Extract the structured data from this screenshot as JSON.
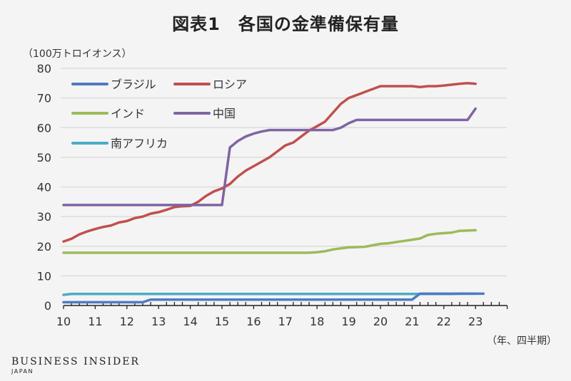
{
  "title": "図表1　各国の金準備保有量",
  "footer": {
    "brand": "BUSINESS INSIDER",
    "sub": "JAPAN"
  },
  "chart_data": {
    "type": "line",
    "title": "図表1　各国の金準備保有量",
    "ylabel": "（100万トロイオンス）",
    "xlabel": "（年、四半期）",
    "ylim": [
      0,
      80
    ],
    "yticks": [
      0,
      10,
      20,
      30,
      40,
      50,
      60,
      70,
      80
    ],
    "xlim": [
      10,
      24
    ],
    "xticks": [
      "10",
      "11",
      "12",
      "13",
      "14",
      "15",
      "16",
      "17",
      "18",
      "19",
      "20",
      "21",
      "22",
      "23"
    ],
    "x_start": 10,
    "x_step": 0.25,
    "grid": true,
    "legend_position": "top-left",
    "series": [
      {
        "name": "ブラジル",
        "color": "#4f7bc1",
        "values": [
          1.1,
          1.1,
          1.1,
          1.1,
          1.1,
          1.1,
          1.1,
          1.1,
          1.1,
          1.1,
          1.1,
          2,
          2,
          2,
          2,
          2,
          2,
          2,
          2,
          2,
          2,
          2,
          2,
          2,
          2,
          2,
          2,
          2,
          2,
          2,
          2,
          2,
          2,
          2,
          2,
          2,
          2,
          2,
          2,
          2,
          2,
          2,
          2,
          2,
          2,
          4,
          4,
          4,
          4,
          4,
          4,
          4,
          4,
          4
        ]
      },
      {
        "name": "ロシア",
        "color": "#c0504d",
        "values": [
          21.6,
          22.5,
          24,
          25,
          25.8,
          26.5,
          27,
          28,
          28.5,
          29.5,
          30,
          31,
          31.5,
          32.3,
          33.2,
          33.5,
          33.6,
          35,
          37,
          38.5,
          39.5,
          41,
          43.5,
          45.5,
          47,
          48.5,
          50,
          52,
          54,
          55,
          57,
          59,
          60.5,
          62,
          65,
          68,
          70,
          71,
          72,
          73,
          74,
          74,
          74,
          74,
          74,
          73.7,
          74,
          74,
          74.2,
          74.5,
          74.8,
          75,
          74.8
        ]
      },
      {
        "name": "インド",
        "color": "#9bbb59",
        "values": [
          17.8,
          17.8,
          17.8,
          17.8,
          17.8,
          17.8,
          17.8,
          17.8,
          17.8,
          17.8,
          17.8,
          17.8,
          17.8,
          17.8,
          17.8,
          17.8,
          17.8,
          17.8,
          17.8,
          17.8,
          17.8,
          17.8,
          17.8,
          17.8,
          17.8,
          17.8,
          17.8,
          17.8,
          17.8,
          17.8,
          17.8,
          17.8,
          18.0,
          18.3,
          18.9,
          19.3,
          19.6,
          19.7,
          19.8,
          20.3,
          20.8,
          21,
          21.4,
          21.8,
          22.2,
          22.6,
          23.8,
          24.2,
          24.4,
          24.6,
          25.2,
          25.3,
          25.4
        ]
      },
      {
        "name": "中国",
        "color": "#8064a2",
        "values": [
          33.9,
          33.9,
          33.9,
          33.9,
          33.9,
          33.9,
          33.9,
          33.9,
          33.9,
          33.9,
          33.9,
          33.9,
          33.9,
          33.9,
          33.9,
          33.9,
          33.9,
          33.9,
          33.9,
          33.9,
          33.9,
          53.3,
          55.5,
          57,
          58,
          58.7,
          59.2,
          59.2,
          59.2,
          59.2,
          59.2,
          59.2,
          59.2,
          59.2,
          59.2,
          60,
          61.5,
          62.6,
          62.6,
          62.6,
          62.6,
          62.6,
          62.6,
          62.6,
          62.6,
          62.6,
          62.6,
          62.6,
          62.6,
          62.6,
          62.6,
          62.6,
          66.4
        ]
      },
      {
        "name": "南アフリカ",
        "color": "#4bacc6",
        "values": [
          3.6,
          3.9,
          3.9,
          3.9,
          3.9,
          3.9,
          3.9,
          3.9,
          3.9,
          3.9,
          3.9,
          3.9,
          3.9,
          3.9,
          3.9,
          3.9,
          3.9,
          3.9,
          3.9,
          3.9,
          3.9,
          3.9,
          3.9,
          3.9,
          3.9,
          3.9,
          3.9,
          3.9,
          3.9,
          3.9,
          3.9,
          3.9,
          3.9,
          3.9,
          3.9,
          3.9,
          3.9,
          3.9,
          3.9,
          3.9,
          3.9,
          3.9,
          3.9,
          3.9,
          3.9,
          3.9,
          3.9,
          3.9,
          3.9,
          3.9,
          4,
          4,
          4
        ]
      }
    ]
  }
}
